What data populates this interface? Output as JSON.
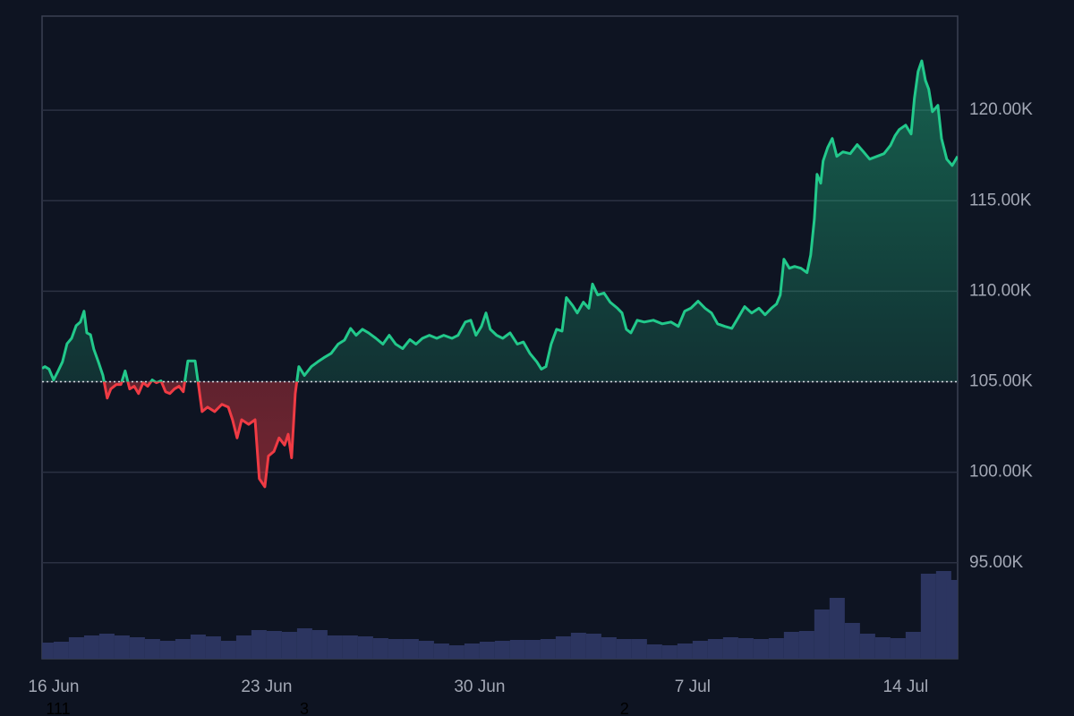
{
  "chart_data": {
    "type": "baseline",
    "baseline": 105000,
    "x": [
      -0.38,
      -0.29,
      -0.15,
      0,
      0.15,
      0.29,
      0.44,
      0.59,
      0.74,
      0.88,
      1.0,
      1.09,
      1.21,
      1.32,
      1.47,
      1.62,
      1.76,
      1.88,
      2.06,
      2.21,
      2.35,
      2.5,
      2.65,
      2.79,
      2.94,
      3.09,
      3.24,
      3.38,
      3.53,
      3.68,
      3.82,
      3.97,
      4.12,
      4.26,
      4.41,
      4.65,
      4.76,
      4.88,
      5.06,
      5.29,
      5.53,
      5.74,
      5.88,
      6.03,
      6.18,
      6.41,
      6.62,
      6.76,
      6.94,
      7.06,
      7.24,
      7.41,
      7.59,
      7.71,
      7.82,
      7.94,
      8.06,
      8.24,
      8.47,
      8.68,
      8.88,
      9.12,
      9.35,
      9.56,
      9.76,
      9.94,
      10.15,
      10.35,
      10.59,
      10.82,
      11.03,
      11.24,
      11.47,
      11.71,
      11.91,
      12.12,
      12.35,
      12.59,
      12.82,
      13.09,
      13.29,
      13.53,
      13.71,
      13.88,
      14.06,
      14.21,
      14.35,
      14.56,
      14.76,
      15.0,
      15.24,
      15.44,
      15.65,
      15.88,
      16.03,
      16.18,
      16.35,
      16.53,
      16.71,
      16.85,
      17.06,
      17.21,
      17.41,
      17.59,
      17.71,
      17.88,
      18.09,
      18.29,
      18.53,
      18.68,
      18.82,
      18.97,
      19.18,
      19.41,
      19.71,
      20.0,
      20.29,
      20.53,
      20.74,
      20.94,
      21.18,
      21.41,
      21.62,
      21.82,
      22.06,
      22.29,
      22.5,
      22.71,
      22.94,
      23.18,
      23.38,
      23.59,
      23.76,
      23.88,
      24.0,
      24.18,
      24.35,
      24.56,
      24.76,
      24.88,
      25.0,
      25.09,
      25.21,
      25.29,
      25.44,
      25.59,
      25.74,
      25.94,
      26.18,
      26.41,
      26.62,
      26.82,
      27.06,
      27.29,
      27.5,
      27.65,
      27.79,
      28.0,
      28.18,
      28.29,
      28.41,
      28.53,
      28.65,
      28.76,
      28.88,
      29.06,
      29.18,
      29.35,
      29.53,
      29.71
    ],
    "series": [
      {
        "color_up": "#22c98b",
        "color_down": "#ef3b44",
        "values": [
          105740,
          105840,
          105700,
          105100,
          105600,
          106100,
          107100,
          107400,
          108100,
          108300,
          108900,
          107700,
          107600,
          106800,
          106100,
          105350,
          104100,
          104600,
          104850,
          104850,
          105600,
          104600,
          104750,
          104350,
          104950,
          104750,
          105100,
          104950,
          105050,
          104450,
          104350,
          104600,
          104750,
          104450,
          106150,
          106150,
          104850,
          103350,
          103600,
          103350,
          103750,
          103600,
          102900,
          101900,
          102900,
          102650,
          102900,
          99650,
          99200,
          100900,
          101150,
          101900,
          101500,
          102100,
          100800,
          104350,
          105840,
          105350,
          105840,
          106100,
          106330,
          106570,
          107080,
          107300,
          107950,
          107570,
          107900,
          107700,
          107400,
          107080,
          107570,
          107080,
          106830,
          107330,
          107080,
          107400,
          107570,
          107400,
          107570,
          107400,
          107570,
          108300,
          108400,
          107570,
          108060,
          108800,
          107900,
          107570,
          107400,
          107700,
          107080,
          107200,
          106570,
          106100,
          105700,
          105840,
          107080,
          107900,
          107800,
          109650,
          109200,
          108800,
          109400,
          109060,
          110400,
          109800,
          109900,
          109400,
          109060,
          108800,
          107900,
          107700,
          108400,
          108300,
          108400,
          108200,
          108300,
          108060,
          108900,
          109060,
          109450,
          109060,
          108800,
          108200,
          108060,
          107950,
          108550,
          109150,
          108800,
          109060,
          108700,
          109060,
          109300,
          109800,
          111770,
          111270,
          111370,
          111270,
          111030,
          112000,
          113990,
          116460,
          115970,
          117200,
          117940,
          118440,
          117450,
          117700,
          117600,
          118100,
          117700,
          117300,
          117450,
          117600,
          118050,
          118590,
          118930,
          119180,
          118690,
          120660,
          122140,
          122730,
          121650,
          121160,
          119920,
          120270,
          118440,
          117300,
          116950,
          117450
        ]
      }
    ],
    "volume": {
      "color": "#2c3560",
      "x": [
        -0.25,
        0.25,
        0.75,
        1.25,
        1.75,
        2.25,
        2.75,
        3.25,
        3.75,
        4.25,
        4.75,
        5.25,
        5.75,
        6.25,
        6.75,
        7.25,
        7.75,
        8.25,
        8.75,
        9.25,
        9.75,
        10.25,
        10.75,
        11.25,
        11.75,
        12.25,
        12.75,
        13.25,
        13.75,
        14.25,
        14.75,
        15.25,
        15.75,
        16.25,
        16.75,
        17.25,
        17.75,
        18.25,
        18.75,
        19.25,
        19.75,
        20.25,
        20.75,
        21.25,
        21.75,
        22.25,
        22.75,
        23.25,
        23.75,
        24.25,
        24.75,
        25.25,
        25.75,
        26.25,
        26.75,
        27.25,
        27.75,
        28.25,
        28.75,
        29.25,
        29.6
      ],
      "values": [
        18,
        19,
        24,
        26,
        28,
        26,
        24,
        22,
        20,
        22,
        27,
        25,
        20,
        26,
        32,
        31,
        30,
        34,
        32,
        26,
        26,
        25,
        23,
        22,
        22,
        20,
        17,
        15,
        17,
        19,
        20,
        21,
        21,
        22,
        25,
        29,
        28,
        24,
        22,
        22,
        16,
        15,
        17,
        20,
        22,
        24,
        23,
        22,
        23,
        30,
        31,
        55,
        68,
        40,
        28,
        24,
        23,
        30,
        95,
        98,
        88
      ],
      "y2lim": [
        0,
        718
      ]
    },
    "xlim": [
      -0.38,
      29.71
    ],
    "xticks": [
      {
        "value": 0,
        "label": "16 Jun"
      },
      {
        "value": 7,
        "label": "23 Jun"
      },
      {
        "value": 14,
        "label": "30 Jun"
      },
      {
        "value": 21,
        "label": "7 Jul"
      },
      {
        "value": 28,
        "label": "14 Jul"
      }
    ],
    "ylim": [
      89700,
      125200
    ],
    "yticks": [
      {
        "value": 95000,
        "label": "95.00K"
      },
      {
        "value": 100000,
        "label": "100.00K"
      },
      {
        "value": 105000,
        "label": "105.00K"
      },
      {
        "value": 110000,
        "label": "110.00K"
      },
      {
        "value": 115000,
        "label": "115.00K"
      },
      {
        "value": 120000,
        "label": "120.00K"
      }
    ],
    "grid": true,
    "annotations": [
      {
        "x": 0.15,
        "text": "111"
      },
      {
        "x": 8.24,
        "text": "3"
      },
      {
        "x": 18.76,
        "text": "2"
      }
    ]
  }
}
